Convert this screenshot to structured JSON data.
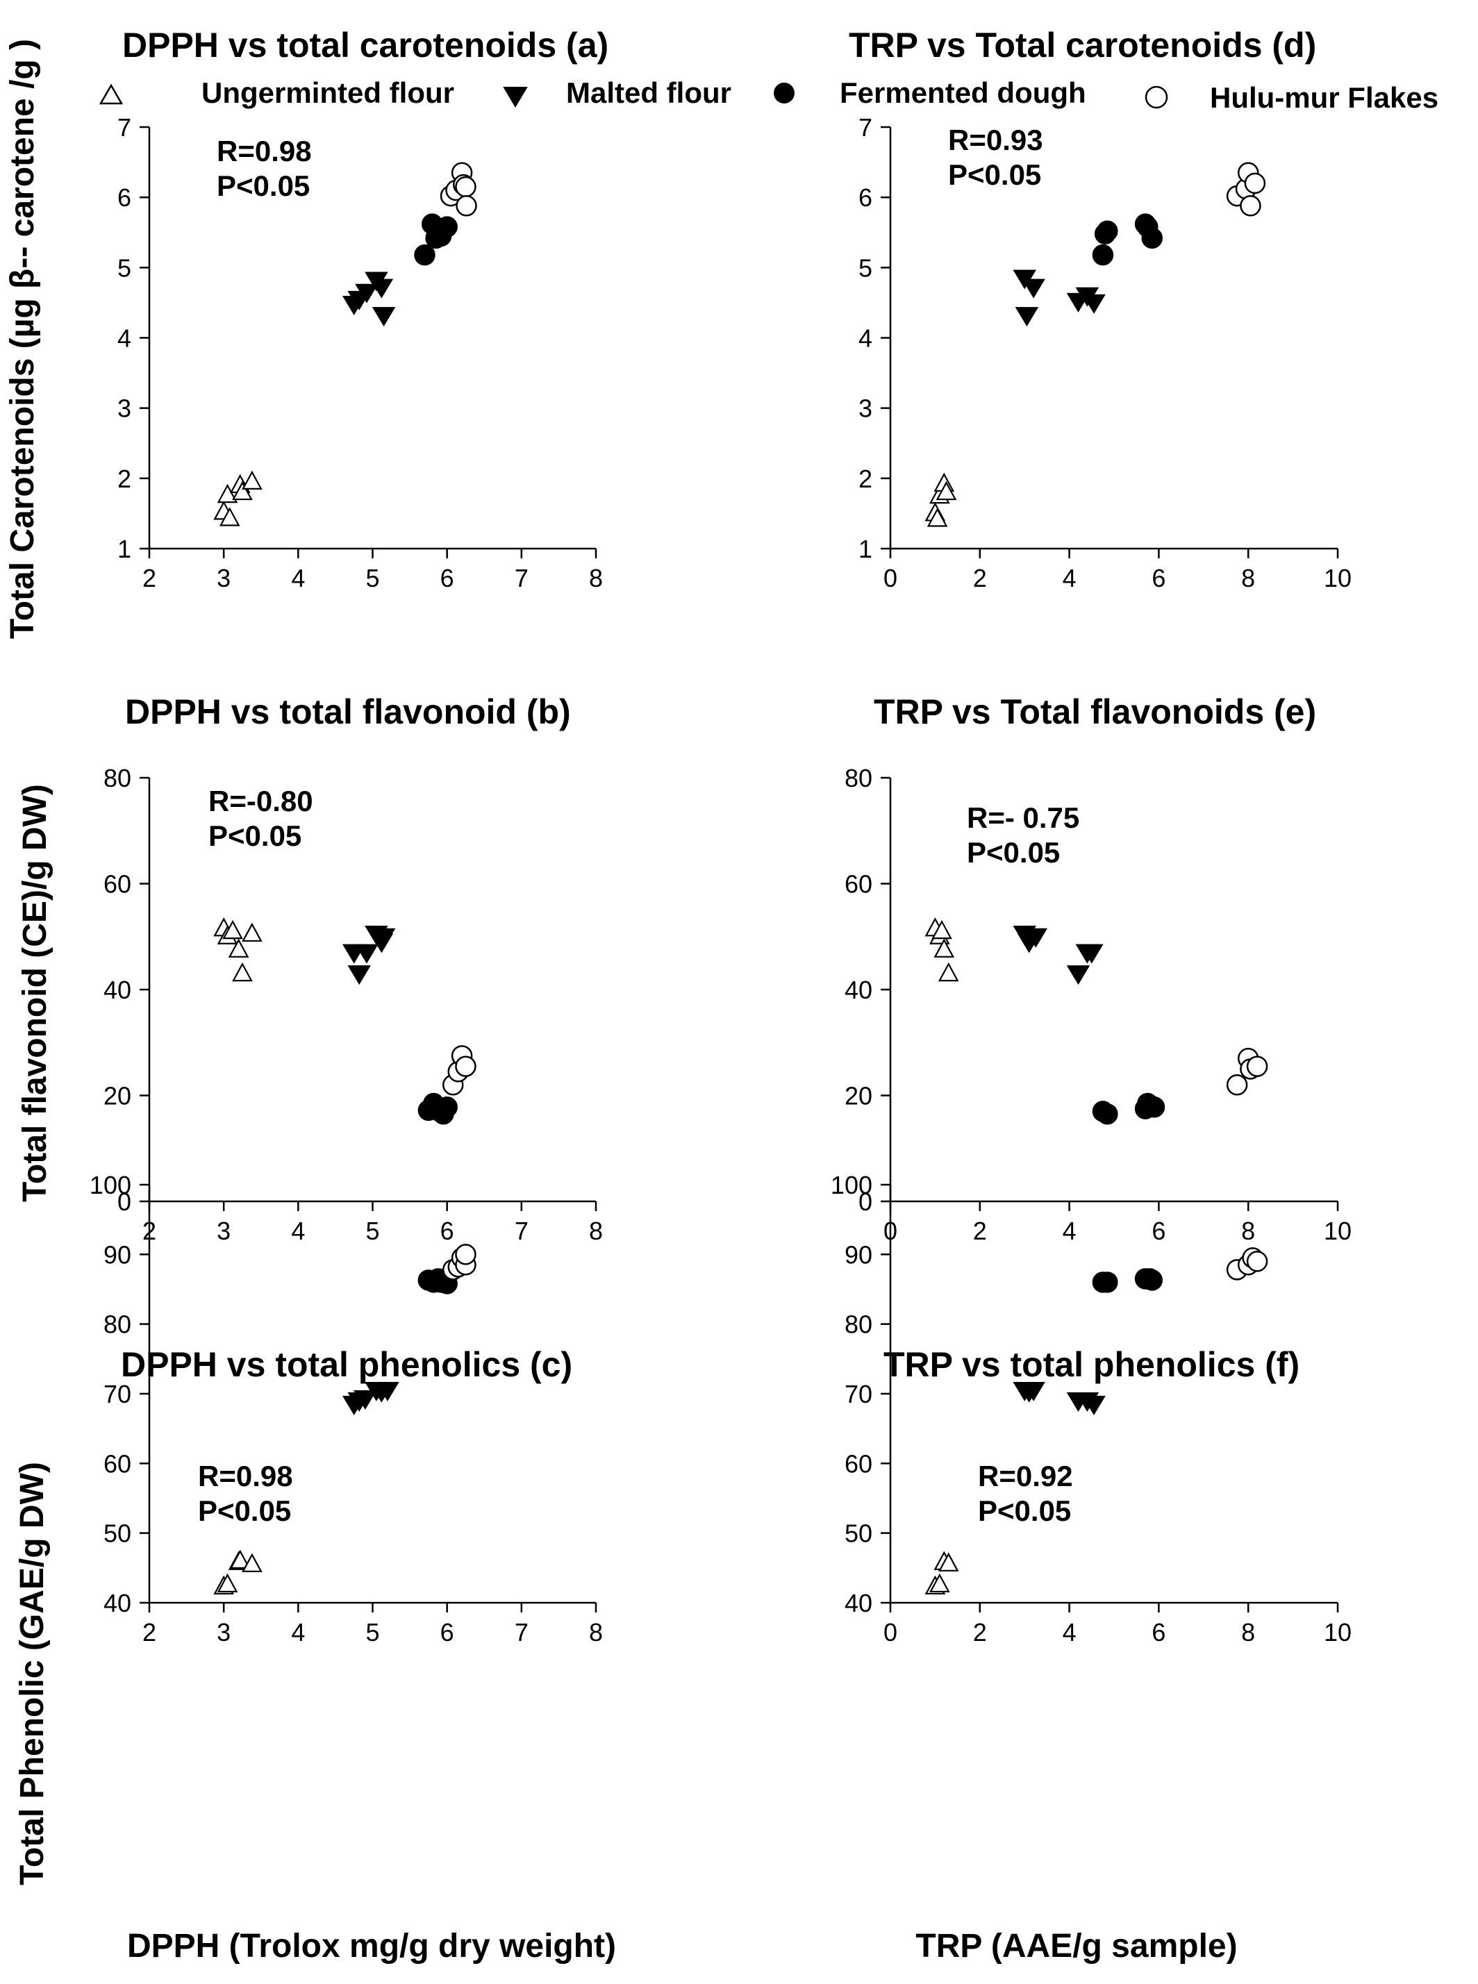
{
  "legend": {
    "items": [
      {
        "label": "Ungerminted flour",
        "marker": "triangle-up-open"
      },
      {
        "label": "Malted flour",
        "marker": "triangle-down-filled"
      },
      {
        "label": "Fermented dough",
        "marker": "circle-filled"
      },
      {
        "label": "Hulu-mur Flakes",
        "marker": "circle-open"
      }
    ]
  },
  "axis_labels": {
    "y_carotenoids": "Total Carotenoids (µg β-- carotene /g )",
    "y_flavonoid": "Total flavonoid  (CE)/g DW)",
    "y_phenolic": "Total Phenolic (GAE/g DW)",
    "x_dpph": "DPPH  (Trolox mg/g dry weight)",
    "x_trp": "TRP (AAE/g sample)"
  },
  "chart_data": [
    {
      "type": "scatter",
      "title": "DPPH vs total carotenoids  (a)",
      "stats": [
        "R=0.98",
        "P<0.05"
      ],
      "xlim": [
        2,
        8
      ],
      "xticks": [
        2,
        3,
        4,
        5,
        6,
        7,
        8
      ],
      "ylim": [
        1,
        7
      ],
      "yticks": [
        1,
        2,
        3,
        4,
        5,
        6,
        7
      ],
      "series": [
        {
          "name": "Ungerminted flour",
          "points": [
            [
              3.0,
              1.52
            ],
            [
              3.08,
              1.43
            ],
            [
              3.05,
              1.76
            ],
            [
              3.22,
              1.9
            ],
            [
              3.25,
              1.8
            ],
            [
              3.38,
              1.95
            ]
          ]
        },
        {
          "name": "Malted flour",
          "points": [
            [
              4.75,
              4.48
            ],
            [
              4.82,
              4.55
            ],
            [
              4.92,
              4.65
            ],
            [
              5.05,
              4.82
            ],
            [
              5.12,
              4.72
            ],
            [
              5.15,
              4.32
            ]
          ]
        },
        {
          "name": "Fermented dough",
          "points": [
            [
              5.7,
              5.18
            ],
            [
              5.8,
              5.62
            ],
            [
              5.85,
              5.42
            ],
            [
              5.88,
              5.5
            ],
            [
              5.92,
              5.45
            ],
            [
              6.0,
              5.58
            ]
          ]
        },
        {
          "name": "Hulu-mur Flakes",
          "points": [
            [
              6.05,
              6.02
            ],
            [
              6.12,
              6.1
            ],
            [
              6.2,
              6.35
            ],
            [
              6.22,
              6.18
            ],
            [
              6.25,
              6.15
            ],
            [
              6.26,
              5.88
            ]
          ]
        }
      ]
    },
    {
      "type": "scatter",
      "title": "DPPH vs total flavonoid  (b)",
      "stats": [
        "R=-0.80",
        "P<0.05"
      ],
      "xlim": [
        2,
        8
      ],
      "xticks": [
        2,
        3,
        4,
        5,
        6,
        7,
        8
      ],
      "ylim": [
        0,
        80
      ],
      "yticks": [
        0,
        20,
        40,
        60,
        80
      ],
      "series": [
        {
          "name": "Ungerminted flour",
          "points": [
            [
              3.0,
              51.5
            ],
            [
              3.05,
              50.0
            ],
            [
              3.12,
              51.0
            ],
            [
              3.2,
              47.5
            ],
            [
              3.25,
              43.0
            ],
            [
              3.38,
              50.5
            ]
          ]
        },
        {
          "name": "Malted flour",
          "points": [
            [
              4.75,
              47.0
            ],
            [
              4.82,
              43.0
            ],
            [
              4.92,
              47.0
            ],
            [
              5.05,
              50.5
            ],
            [
              5.12,
              49.0
            ],
            [
              5.15,
              50.0
            ]
          ]
        },
        {
          "name": "Fermented dough",
          "points": [
            [
              5.75,
              17.2
            ],
            [
              5.82,
              18.5
            ],
            [
              5.85,
              17.5
            ],
            [
              5.9,
              17.0
            ],
            [
              5.95,
              16.5
            ],
            [
              6.0,
              17.8
            ]
          ]
        },
        {
          "name": "Hulu-mur Flakes",
          "points": [
            [
              6.08,
              22.0
            ],
            [
              6.15,
              24.5
            ],
            [
              6.2,
              27.5
            ],
            [
              6.25,
              25.5
            ]
          ]
        }
      ]
    },
    {
      "type": "scatter",
      "title": "DPPH vs total phenolics  (c)",
      "stats": [
        "R=0.98",
        "P<0.05"
      ],
      "xlim": [
        2,
        8
      ],
      "xticks": [
        2,
        3,
        4,
        5,
        6,
        7,
        8
      ],
      "ylim": [
        40,
        100
      ],
      "yticks": [
        40,
        50,
        60,
        70,
        80,
        90,
        100
      ],
      "series": [
        {
          "name": "Ungerminted flour",
          "points": [
            [
              3.0,
              42.3
            ],
            [
              3.05,
              42.6
            ],
            [
              3.2,
              45.8
            ],
            [
              3.22,
              46.0
            ],
            [
              3.38,
              45.5
            ]
          ]
        },
        {
          "name": "Malted flour",
          "points": [
            [
              4.75,
              68.5
            ],
            [
              4.82,
              69.0
            ],
            [
              4.9,
              69.3
            ],
            [
              5.05,
              70.5
            ],
            [
              5.12,
              70.3
            ],
            [
              5.2,
              70.5
            ]
          ]
        },
        {
          "name": "Fermented dough",
          "points": [
            [
              5.75,
              86.3
            ],
            [
              5.82,
              86.0
            ],
            [
              5.88,
              86.5
            ],
            [
              5.92,
              86.0
            ],
            [
              6.0,
              85.8
            ]
          ]
        },
        {
          "name": "Hulu-mur Flakes",
          "points": [
            [
              6.08,
              87.8
            ],
            [
              6.15,
              88.2
            ],
            [
              6.2,
              89.5
            ],
            [
              6.25,
              88.5
            ],
            [
              6.25,
              90.0
            ]
          ]
        }
      ]
    },
    {
      "type": "scatter",
      "title": "TRP  vs Total carotenoids (d)",
      "stats": [
        "R=0.93",
        "P<0.05"
      ],
      "xlim": [
        0,
        10
      ],
      "xticks": [
        0,
        2,
        4,
        6,
        8,
        10
      ],
      "ylim": [
        1,
        7
      ],
      "yticks": [
        1,
        2,
        3,
        4,
        5,
        6,
        7
      ],
      "series": [
        {
          "name": "Ungerminted flour",
          "points": [
            [
              1.0,
              1.5
            ],
            [
              1.05,
              1.42
            ],
            [
              1.1,
              1.75
            ],
            [
              1.2,
              1.92
            ],
            [
              1.25,
              1.8
            ]
          ]
        },
        {
          "name": "Malted flour",
          "points": [
            [
              3.0,
              4.85
            ],
            [
              3.05,
              4.32
            ],
            [
              3.2,
              4.72
            ],
            [
              4.2,
              4.52
            ],
            [
              4.4,
              4.6
            ],
            [
              4.55,
              4.5
            ]
          ]
        },
        {
          "name": "Fermented dough",
          "points": [
            [
              4.75,
              5.18
            ],
            [
              4.8,
              5.48
            ],
            [
              4.85,
              5.52
            ],
            [
              5.7,
              5.62
            ],
            [
              5.75,
              5.58
            ],
            [
              5.85,
              5.42
            ]
          ]
        },
        {
          "name": "Hulu-mur Flakes",
          "points": [
            [
              7.75,
              6.02
            ],
            [
              7.95,
              6.12
            ],
            [
              8.0,
              6.35
            ],
            [
              8.05,
              5.88
            ],
            [
              8.15,
              6.2
            ]
          ]
        }
      ]
    },
    {
      "type": "scatter",
      "title": "TRP vs Total flavonoids  (e)",
      "stats": [
        "R=- 0.75",
        "P<0.05"
      ],
      "xlim": [
        0,
        10
      ],
      "xticks": [
        0,
        2,
        4,
        6,
        8,
        10
      ],
      "ylim": [
        0,
        80
      ],
      "yticks": [
        0,
        20,
        40,
        60,
        80
      ],
      "series": [
        {
          "name": "Ungerminted flour",
          "points": [
            [
              1.0,
              51.5
            ],
            [
              1.1,
              50.0
            ],
            [
              1.15,
              51.0
            ],
            [
              1.2,
              47.5
            ],
            [
              1.3,
              43.0
            ]
          ]
        },
        {
          "name": "Malted flour",
          "points": [
            [
              3.0,
              50.5
            ],
            [
              3.1,
              49.0
            ],
            [
              3.25,
              50.0
            ],
            [
              4.2,
              43.0
            ],
            [
              4.4,
              47.0
            ],
            [
              4.5,
              47.0
            ]
          ]
        },
        {
          "name": "Fermented dough",
          "points": [
            [
              4.75,
              17.0
            ],
            [
              4.85,
              16.5
            ],
            [
              5.7,
              17.5
            ],
            [
              5.75,
              18.5
            ],
            [
              5.8,
              18.0
            ],
            [
              5.9,
              17.8
            ]
          ]
        },
        {
          "name": "Hulu-mur Flakes",
          "points": [
            [
              7.75,
              22.0
            ],
            [
              8.0,
              27.0
            ],
            [
              8.05,
              25.0
            ],
            [
              8.2,
              25.5
            ]
          ]
        }
      ]
    },
    {
      "type": "scatter",
      "title": "TRP vs total phenolics   (f)",
      "stats": [
        "R=0.92",
        "P<0.05"
      ],
      "xlim": [
        0,
        10
      ],
      "xticks": [
        0,
        2,
        4,
        6,
        8,
        10
      ],
      "ylim": [
        40,
        100
      ],
      "yticks": [
        40,
        50,
        60,
        70,
        80,
        90,
        100
      ],
      "series": [
        {
          "name": "Ungerminted flour",
          "points": [
            [
              1.0,
              42.3
            ],
            [
              1.1,
              42.6
            ],
            [
              1.2,
              45.8
            ],
            [
              1.3,
              45.6
            ]
          ]
        },
        {
          "name": "Malted flour",
          "points": [
            [
              3.0,
              70.5
            ],
            [
              3.1,
              70.3
            ],
            [
              3.2,
              70.5
            ],
            [
              4.2,
              69.0
            ],
            [
              4.4,
              69.0
            ],
            [
              4.55,
              68.5
            ]
          ]
        },
        {
          "name": "Fermented dough",
          "points": [
            [
              4.75,
              86.0
            ],
            [
              4.85,
              86.0
            ],
            [
              5.7,
              86.5
            ],
            [
              5.8,
              86.5
            ],
            [
              5.85,
              86.3
            ]
          ]
        },
        {
          "name": "Hulu-mur Flakes",
          "points": [
            [
              7.75,
              87.8
            ],
            [
              8.0,
              88.5
            ],
            [
              8.1,
              89.5
            ],
            [
              8.2,
              89.0
            ]
          ]
        }
      ]
    }
  ]
}
